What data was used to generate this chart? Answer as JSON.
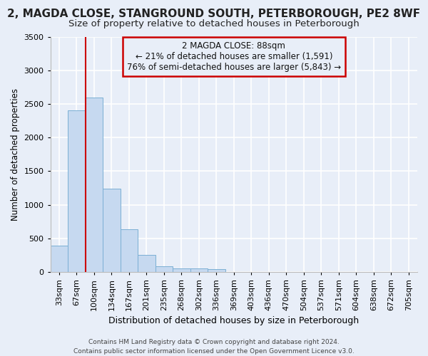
{
  "title": "2, MAGDA CLOSE, STANGROUND SOUTH, PETERBOROUGH, PE2 8WF",
  "subtitle": "Size of property relative to detached houses in Peterborough",
  "xlabel": "Distribution of detached houses by size in Peterborough",
  "ylabel": "Number of detached properties",
  "categories": [
    "33sqm",
    "67sqm",
    "100sqm",
    "134sqm",
    "167sqm",
    "201sqm",
    "235sqm",
    "268sqm",
    "302sqm",
    "336sqm",
    "369sqm",
    "403sqm",
    "436sqm",
    "470sqm",
    "504sqm",
    "537sqm",
    "571sqm",
    "604sqm",
    "638sqm",
    "672sqm",
    "705sqm"
  ],
  "values": [
    390,
    2400,
    2600,
    1240,
    640,
    255,
    90,
    55,
    55,
    40,
    0,
    0,
    0,
    0,
    0,
    0,
    0,
    0,
    0,
    0,
    0
  ],
  "bar_color": "#c6d9f0",
  "bar_edge_color": "#7bafd4",
  "ylim": [
    0,
    3500
  ],
  "yticks": [
    0,
    500,
    1000,
    1500,
    2000,
    2500,
    3000,
    3500
  ],
  "vline_color": "#cc0000",
  "annotation_text": "2 MAGDA CLOSE: 88sqm\n← 21% of detached houses are smaller (1,591)\n76% of semi-detached houses are larger (5,843) →",
  "footer": "Contains HM Land Registry data © Crown copyright and database right 2024.\nContains public sector information licensed under the Open Government Licence v3.0.",
  "bg_color": "#e8eef8",
  "grid_color": "#ffffff",
  "title_fontsize": 11,
  "subtitle_fontsize": 9.5,
  "xlabel_fontsize": 9,
  "ylabel_fontsize": 8.5,
  "tick_fontsize": 8,
  "annotation_fontsize": 8.5,
  "footer_fontsize": 6.5
}
